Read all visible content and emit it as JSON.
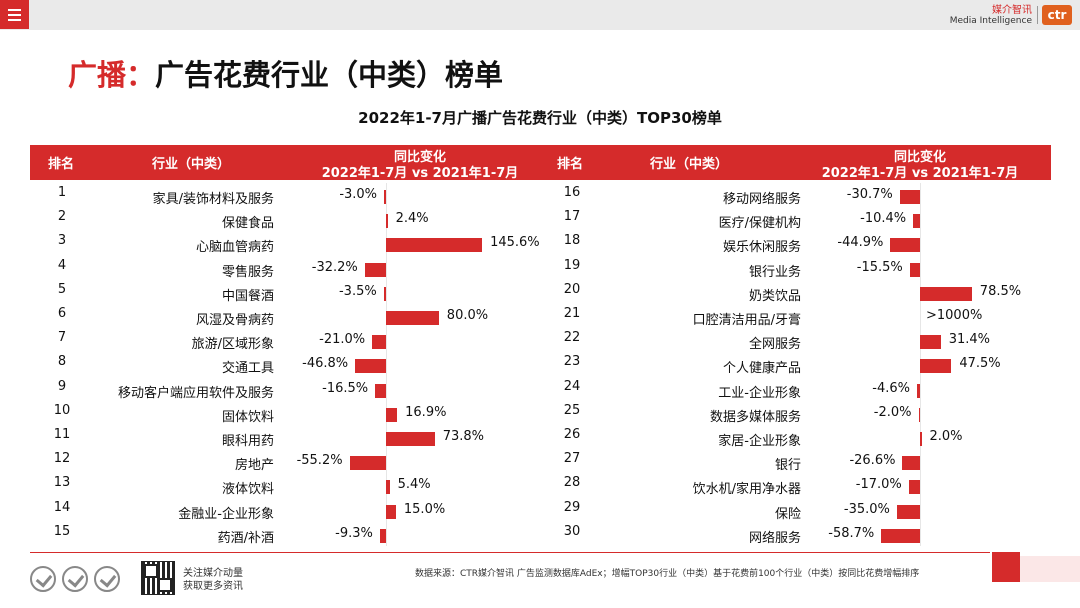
{
  "header": {
    "logo_cn": "媒介智讯",
    "logo_en": "Media Intelligence",
    "logo_mark": "ctr"
  },
  "page": {
    "title_prefix": "广播：",
    "title_main": "广告花费行业（中类）榜单"
  },
  "table_headers": {
    "rank": "排名",
    "industry": "行业（中类）",
    "change_line1": "同比变化",
    "change_line2": "2022年1-7月 vs 2021年1-7月"
  },
  "footer": {
    "source": "数据来源：CTR媒介智讯 广告监测数据库AdEx；增幅TOP30行业（中类）基于花费前100个行业（中类）按同比花费增幅排序",
    "follow_line1": "关注媒介动量",
    "follow_line2": "获取更多资讯"
  },
  "icons": [
    "menu-icon",
    "certification-badge-icon",
    "qr-code-icon"
  ],
  "colors": {
    "accent": "#d52b2b",
    "logo": "#e0601e"
  },
  "chart_data": {
    "type": "bar",
    "title": "2022年1-7月广播广告花费行业（中类）TOP30榜单",
    "unit": "%",
    "rows": [
      {
        "rank": "1",
        "industry": "家具/装饰材料及服务",
        "value": -3.0,
        "label": "-3.0%"
      },
      {
        "rank": "2",
        "industry": "保健食品",
        "value": 2.4,
        "label": "2.4%"
      },
      {
        "rank": "3",
        "industry": "心脑血管病药",
        "value": 145.6,
        "label": "145.6%"
      },
      {
        "rank": "4",
        "industry": "零售服务",
        "value": -32.2,
        "label": "-32.2%"
      },
      {
        "rank": "5",
        "industry": "中国餐酒",
        "value": -3.5,
        "label": "-3.5%"
      },
      {
        "rank": "6",
        "industry": "风湿及骨病药",
        "value": 80.0,
        "label": "80.0%"
      },
      {
        "rank": "7",
        "industry": "旅游/区域形象",
        "value": -21.0,
        "label": "-21.0%"
      },
      {
        "rank": "8",
        "industry": "交通工具",
        "value": -46.8,
        "label": "-46.8%"
      },
      {
        "rank": "9",
        "industry": "移动客户端应用软件及服务",
        "value": -16.5,
        "label": "-16.5%"
      },
      {
        "rank": "10",
        "industry": "固体饮料",
        "value": 16.9,
        "label": "16.9%"
      },
      {
        "rank": "11",
        "industry": "眼科用药",
        "value": 73.8,
        "label": "73.8%"
      },
      {
        "rank": "12",
        "industry": "房地产",
        "value": -55.2,
        "label": "-55.2%"
      },
      {
        "rank": "13",
        "industry": "液体饮料",
        "value": 5.4,
        "label": "5.4%"
      },
      {
        "rank": "14",
        "industry": "金融业-企业形象",
        "value": 15.0,
        "label": "15.0%"
      },
      {
        "rank": "15",
        "industry": "药酒/补酒",
        "value": -9.3,
        "label": "-9.3%"
      },
      {
        "rank": "16",
        "industry": "移动网络服务",
        "value": -30.7,
        "label": "-30.7%"
      },
      {
        "rank": "17",
        "industry": "医疗/保健机构",
        "value": -10.4,
        "label": "-10.4%"
      },
      {
        "rank": "18",
        "industry": "娱乐休闲服务",
        "value": -44.9,
        "label": "-44.9%"
      },
      {
        "rank": "19",
        "industry": "银行业务",
        "value": -15.5,
        "label": "-15.5%"
      },
      {
        "rank": "20",
        "industry": "奶类饮品",
        "value": 78.5,
        "label": "78.5%"
      },
      {
        "rank": "21",
        "industry": "口腔清洁用品/牙膏",
        "value": null,
        "label": ">1000%"
      },
      {
        "rank": "22",
        "industry": "全网服务",
        "value": 31.4,
        "label": "31.4%"
      },
      {
        "rank": "23",
        "industry": "个人健康产品",
        "value": 47.5,
        "label": "47.5%"
      },
      {
        "rank": "24",
        "industry": "工业-企业形象",
        "value": -4.6,
        "label": "-4.6%"
      },
      {
        "rank": "25",
        "industry": "数据多媒体服务",
        "value": -2.0,
        "label": "-2.0%"
      },
      {
        "rank": "26",
        "industry": "家居-企业形象",
        "value": 2.0,
        "label": "2.0%"
      },
      {
        "rank": "27",
        "industry": "银行",
        "value": -26.6,
        "label": "-26.6%"
      },
      {
        "rank": "28",
        "industry": "饮水机/家用净水器",
        "value": -17.0,
        "label": "-17.0%"
      },
      {
        "rank": "29",
        "industry": "保险",
        "value": -35.0,
        "label": "-35.0%"
      },
      {
        "rank": "30",
        "industry": "网络服务",
        "value": -58.7,
        "label": "-58.7%"
      }
    ]
  }
}
